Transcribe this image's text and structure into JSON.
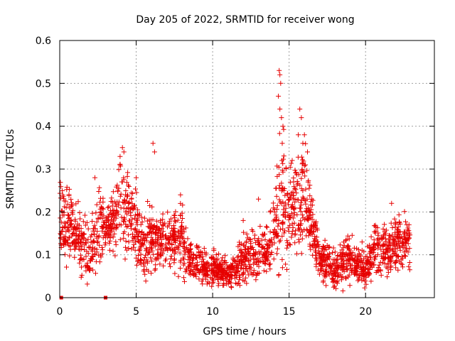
{
  "chart_data": {
    "type": "scatter",
    "title": "Day 205 of 2022, SRMTID for receiver wong",
    "xlabel": "GPS time / hours",
    "ylabel": "SRMTID / TECUs",
    "xlim": [
      0,
      24.5
    ],
    "ylim": [
      0,
      0.6
    ],
    "x_ticks": [
      0,
      5,
      10,
      15,
      20
    ],
    "y_ticks": [
      0,
      0.1,
      0.2,
      0.3,
      0.4,
      0.5,
      0.6
    ],
    "x_tick_labels": [
      "0",
      "5",
      "10",
      "15",
      "20"
    ],
    "y_tick_labels": [
      "0",
      "0.1",
      "0.2",
      "0.3",
      "0.4",
      "0.5",
      "0.6"
    ],
    "grid": true,
    "series": [
      {
        "name": "SRMTID",
        "marker": "plus",
        "color": "#e60000",
        "envelope": [
          [
            0.0,
            0.1,
            0.23
          ],
          [
            0.5,
            0.11,
            0.23
          ],
          [
            1.0,
            0.1,
            0.2
          ],
          [
            1.5,
            0.06,
            0.18
          ],
          [
            2.0,
            0.04,
            0.16
          ],
          [
            2.5,
            0.1,
            0.26
          ],
          [
            3.0,
            0.12,
            0.2
          ],
          [
            3.5,
            0.12,
            0.22
          ],
          [
            4.0,
            0.14,
            0.3
          ],
          [
            4.5,
            0.14,
            0.26
          ],
          [
            5.0,
            0.1,
            0.24
          ],
          [
            5.5,
            0.06,
            0.18
          ],
          [
            6.0,
            0.08,
            0.2
          ],
          [
            6.5,
            0.09,
            0.17
          ],
          [
            7.0,
            0.08,
            0.17
          ],
          [
            7.5,
            0.09,
            0.2
          ],
          [
            8.0,
            0.08,
            0.19
          ],
          [
            8.5,
            0.06,
            0.13
          ],
          [
            9.0,
            0.05,
            0.12
          ],
          [
            9.5,
            0.04,
            0.1
          ],
          [
            10.0,
            0.04,
            0.1
          ],
          [
            10.5,
            0.04,
            0.09
          ],
          [
            11.0,
            0.03,
            0.08
          ],
          [
            11.5,
            0.04,
            0.09
          ],
          [
            12.0,
            0.05,
            0.14
          ],
          [
            12.5,
            0.06,
            0.14
          ],
          [
            13.0,
            0.06,
            0.14
          ],
          [
            13.5,
            0.06,
            0.16
          ],
          [
            14.0,
            0.08,
            0.22
          ],
          [
            14.5,
            0.12,
            0.36
          ],
          [
            15.0,
            0.1,
            0.26
          ],
          [
            15.5,
            0.14,
            0.32
          ],
          [
            16.0,
            0.14,
            0.32
          ],
          [
            16.5,
            0.1,
            0.22
          ],
          [
            17.0,
            0.05,
            0.12
          ],
          [
            17.5,
            0.04,
            0.12
          ],
          [
            18.0,
            0.03,
            0.11
          ],
          [
            18.5,
            0.04,
            0.12
          ],
          [
            19.0,
            0.05,
            0.14
          ],
          [
            19.5,
            0.04,
            0.11
          ],
          [
            20.0,
            0.03,
            0.1
          ],
          [
            20.5,
            0.06,
            0.15
          ],
          [
            21.0,
            0.08,
            0.17
          ],
          [
            21.5,
            0.06,
            0.14
          ],
          [
            22.0,
            0.08,
            0.18
          ],
          [
            22.5,
            0.09,
            0.18
          ],
          [
            22.9,
            0.08,
            0.16
          ]
        ],
        "spikes": [
          [
            2.3,
            0.28
          ],
          [
            4.1,
            0.35
          ],
          [
            4.2,
            0.34
          ],
          [
            5.0,
            0.28
          ],
          [
            6.1,
            0.36
          ],
          [
            6.2,
            0.34
          ],
          [
            7.9,
            0.24
          ],
          [
            12.0,
            0.18
          ],
          [
            13.0,
            0.23
          ],
          [
            14.35,
            0.53
          ],
          [
            14.4,
            0.52
          ],
          [
            14.45,
            0.5
          ],
          [
            14.3,
            0.47
          ],
          [
            14.4,
            0.44
          ],
          [
            14.5,
            0.42
          ],
          [
            14.6,
            0.4
          ],
          [
            15.2,
            0.32
          ],
          [
            15.7,
            0.44
          ],
          [
            15.8,
            0.42
          ],
          [
            15.6,
            0.38
          ],
          [
            15.9,
            0.36
          ],
          [
            16.0,
            0.38
          ],
          [
            16.2,
            0.34
          ],
          [
            21.7,
            0.22
          ]
        ],
        "zero_points": [
          [
            0.1,
            0.0
          ],
          [
            3.0,
            0.0
          ]
        ]
      }
    ]
  }
}
